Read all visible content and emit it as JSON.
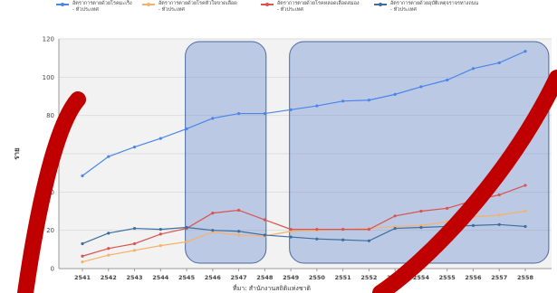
{
  "chart_data": {
    "type": "line",
    "x": [
      "2541",
      "2542",
      "2543",
      "2544",
      "2545",
      "2546",
      "2547",
      "2548",
      "2549",
      "2550",
      "2551",
      "2552",
      "2553",
      "2554",
      "2555",
      "2556",
      "2557",
      "2558"
    ],
    "ylabel": "ราย",
    "xlabel": "ที่มา: สำนักงานสถิติแห่งชาติ",
    "ylim": [
      0,
      120
    ],
    "yticks": [
      0,
      20,
      40,
      60,
      80,
      100,
      120
    ],
    "grid": true,
    "legend_position": "top",
    "series": [
      {
        "name": "อัตราการตายด้วยโรคมะเร็ง",
        "sub": "- ทั่วประเทศ",
        "color": "#4a86e8",
        "values": [
          48.5,
          58.5,
          63.5,
          68,
          73,
          78.5,
          81,
          81,
          83,
          85,
          87.5,
          88,
          91,
          95,
          98.5,
          104.5,
          107.5,
          113.5
        ]
      },
      {
        "name": "อัตราการตายด้วยโรคหัวใจขาดเลือด",
        "sub": "- ทั่วประเทศ",
        "color": "#f6b26b",
        "values": [
          3.5,
          7,
          9.5,
          12,
          14,
          19,
          17.5,
          17,
          19.5,
          20,
          20.5,
          21,
          22,
          22.5,
          24.5,
          27,
          28,
          30
        ]
      },
      {
        "name": "อัตราการตายด้วยโรคหลอดเลือดสมอง",
        "sub": "- ทั่วประเทศ",
        "color": "#d9534f",
        "values": [
          6.5,
          10.5,
          13,
          18,
          21,
          29,
          30.5,
          25.5,
          20.5,
          20.5,
          20.5,
          20.5,
          27.5,
          30,
          31.5,
          35.5,
          38.5,
          43.5
        ]
      },
      {
        "name": "อัตราการตายด้วยอุบัติเหตุจราจรทางถนน",
        "sub": "- ทั่วประเทศ",
        "color": "#3b6e9e",
        "values": [
          13,
          18.5,
          21,
          20.5,
          21.5,
          20,
          19.5,
          17.5,
          16.5,
          15.5,
          15,
          14.5,
          21,
          21.5,
          22,
          22.5,
          23,
          22
        ]
      }
    ],
    "highlight_ranges": [
      [
        "2545",
        "2548"
      ],
      [
        "2549",
        "2558"
      ]
    ]
  }
}
